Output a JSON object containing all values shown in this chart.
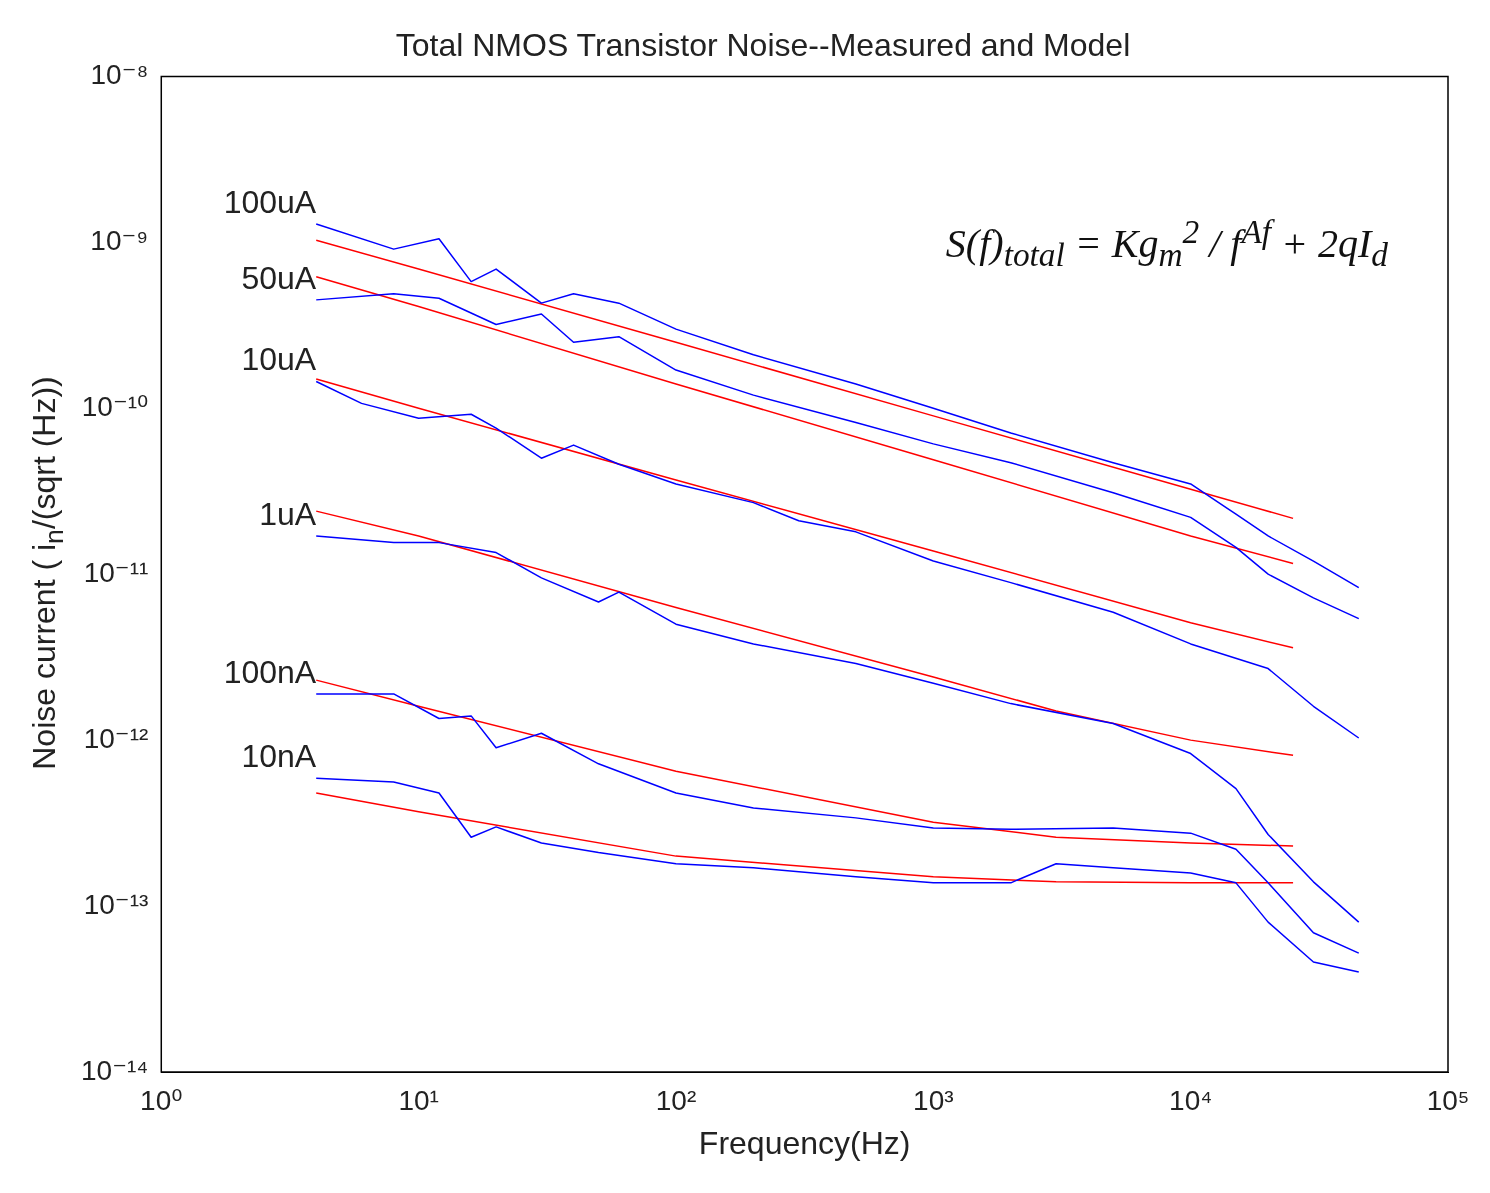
{
  "chart_data": {
    "type": "line",
    "title": "Total NMOS Transistor Noise--Measured and Model",
    "xlabel": "Frequency(Hz)",
    "ylabel": "Noise current ( i$_{n}$/(sqrt (Hz))",
    "log": "xy",
    "grid": false,
    "legend": false,
    "marker": "none",
    "line_style": "solid",
    "xlim": [
      1,
      100000
    ],
    "xticks": [
      {
        "value": 1,
        "label": "10⁰"
      },
      {
        "value": 10,
        "label": "10¹"
      },
      {
        "value": 100,
        "label": "10²"
      },
      {
        "value": 1000,
        "label": "10³"
      },
      {
        "value": 10000,
        "label": "10⁴"
      },
      {
        "value": 100000,
        "label": "10⁵"
      }
    ],
    "ylim": [
      1e-14,
      1e-08
    ],
    "yticks": [
      {
        "value": 1e-14,
        "label": "10⁻¹⁴"
      },
      {
        "value": 1e-13,
        "label": "10⁻¹³"
      },
      {
        "value": 1e-12,
        "label": "10⁻¹²"
      },
      {
        "value": 1e-11,
        "label": "10⁻¹¹"
      },
      {
        "value": 1e-10,
        "label": "10⁻¹⁰"
      },
      {
        "value": 1e-09,
        "label": "10⁻⁹"
      },
      {
        "value": 1e-08,
        "label": "10⁻⁸"
      }
    ],
    "annotations": [
      "S(f)$_{total}$ = Kg$_{m}$$^{2}$ / f$^{Af}$ + 2qI$_{d}$"
    ],
    "series": [
      {
        "name": "100uA",
        "color": "#0000ff",
        "x": [
          4,
          8,
          12,
          16,
          20,
          30,
          40,
          60,
          100,
          200,
          500,
          1000,
          2000,
          5000,
          10000,
          15000,
          20000,
          30000,
          45000
        ],
        "values": [
          1.29e-09,
          9.1e-10,
          1.05e-09,
          5.8e-10,
          6.9e-10,
          4.3e-10,
          4.9e-10,
          4.3e-10,
          3e-10,
          2.1e-10,
          1.4e-10,
          1e-10,
          7.1e-11,
          4.7e-11,
          3.5e-11,
          2.3e-11,
          1.7e-11,
          1.2e-11,
          8.3e-12
        ]
      },
      {
        "name": "50uA",
        "color": "#0000ff",
        "x": [
          4,
          8,
          12,
          20,
          30,
          40,
          60,
          100,
          200,
          500,
          1000,
          2000,
          5000,
          10000,
          15000,
          20000,
          30000,
          45000
        ],
        "values": [
          4.5e-10,
          4.9e-10,
          4.6e-10,
          3.2e-10,
          3.7e-10,
          2.5e-10,
          2.7e-10,
          1.7e-10,
          1.2e-10,
          8.2e-11,
          6.1e-11,
          4.7e-11,
          3.1e-11,
          2.2e-11,
          1.45e-11,
          1e-11,
          7.2e-12,
          5.4e-12
        ]
      },
      {
        "name": "10uA",
        "color": "#0000ff",
        "x": [
          4,
          6,
          10,
          16,
          20,
          30,
          40,
          60,
          100,
          200,
          300,
          500,
          1000,
          2000,
          5000,
          10000,
          20000,
          30000,
          45000
        ],
        "values": [
          1.45e-10,
          1.07e-10,
          8.7e-11,
          9.2e-11,
          7.6e-11,
          5e-11,
          6e-11,
          4.6e-11,
          3.5e-11,
          2.7e-11,
          2.1e-11,
          1.8e-11,
          1.2e-11,
          8.9e-12,
          5.9e-12,
          3.8e-12,
          2.7e-12,
          1.6e-12,
          1.03e-12
        ]
      },
      {
        "name": "1uA",
        "color": "#0000ff",
        "x": [
          4,
          8,
          12,
          20,
          30,
          50,
          60,
          100,
          200,
          500,
          1000,
          2000,
          5000,
          10000,
          15000,
          20000,
          30000,
          45000
        ],
        "values": [
          1.7e-11,
          1.55e-11,
          1.55e-11,
          1.35e-11,
          9.5e-12,
          6.8e-12,
          7.8e-12,
          5e-12,
          3.8e-12,
          2.9e-12,
          2.2e-12,
          1.66e-12,
          1.26e-12,
          8.3e-13,
          5.1e-13,
          2.7e-13,
          1.4e-13,
          8e-14
        ]
      },
      {
        "name": "100nA",
        "color": "#0000ff",
        "x": [
          4,
          8,
          12,
          16,
          20,
          30,
          50,
          100,
          200,
          500,
          1000,
          2000,
          5000,
          10000,
          15000,
          20000,
          30000,
          45000
        ],
        "values": [
          1.9e-12,
          1.9e-12,
          1.35e-12,
          1.4e-12,
          9e-13,
          1.1e-12,
          7.2e-13,
          4.8e-13,
          3.9e-13,
          3.4e-13,
          2.95e-13,
          2.9e-13,
          2.95e-13,
          2.75e-13,
          2.2e-13,
          1.38e-13,
          6.9e-14,
          5.2e-14
        ]
      },
      {
        "name": "10nA",
        "color": "#0000ff",
        "x": [
          4,
          8,
          12,
          16,
          20,
          30,
          50,
          100,
          200,
          500,
          1000,
          2000,
          3000,
          5000,
          10000,
          15000,
          20000,
          30000,
          45000
        ],
        "values": [
          5.9e-13,
          5.6e-13,
          4.8e-13,
          2.6e-13,
          3e-13,
          2.4e-13,
          2.1e-13,
          1.8e-13,
          1.7e-13,
          1.5e-13,
          1.38e-13,
          1.38e-13,
          1.8e-13,
          1.7e-13,
          1.58e-13,
          1.38e-13,
          8e-14,
          4.6e-14,
          4e-14
        ]
      },
      {
        "color": "#ff0000",
        "x": [
          4,
          10,
          100,
          1000,
          10000,
          25000
        ],
        "values": [
          1.03e-09,
          6.9e-10,
          2.5e-10,
          9e-11,
          3.25e-11,
          2.17e-11
        ]
      },
      {
        "color": "#ff0000",
        "x": [
          4,
          10,
          100,
          1000,
          10000,
          25000
        ],
        "values": [
          6.2e-10,
          4.1e-10,
          1.4e-10,
          4.9e-11,
          1.7e-11,
          1.16e-11
        ]
      },
      {
        "color": "#ff0000",
        "x": [
          4,
          10,
          100,
          1000,
          10000,
          25000
        ],
        "values": [
          1.5e-10,
          1e-10,
          3.7e-11,
          1.38e-11,
          5.1e-12,
          3.6e-12
        ]
      },
      {
        "color": "#ff0000",
        "x": [
          4,
          10,
          100,
          1000,
          3000,
          10000,
          25000
        ],
        "values": [
          2.4e-11,
          1.7e-11,
          6.3e-12,
          2.4e-12,
          1.5e-12,
          1e-12,
          8.1e-13
        ]
      },
      {
        "color": "#ff0000",
        "x": [
          4,
          10,
          100,
          1000,
          3000,
          10000,
          25000
        ],
        "values": [
          2.3e-12,
          1.6e-12,
          6.5e-13,
          3.2e-13,
          2.6e-13,
          2.4e-13,
          2.3e-13
        ]
      },
      {
        "color": "#ff0000",
        "x": [
          4,
          10,
          100,
          1000,
          3000,
          10000,
          25000
        ],
        "values": [
          4.8e-13,
          3.7e-13,
          2e-13,
          1.5e-13,
          1.4e-13,
          1.38e-13,
          1.38e-13
        ]
      }
    ]
  }
}
